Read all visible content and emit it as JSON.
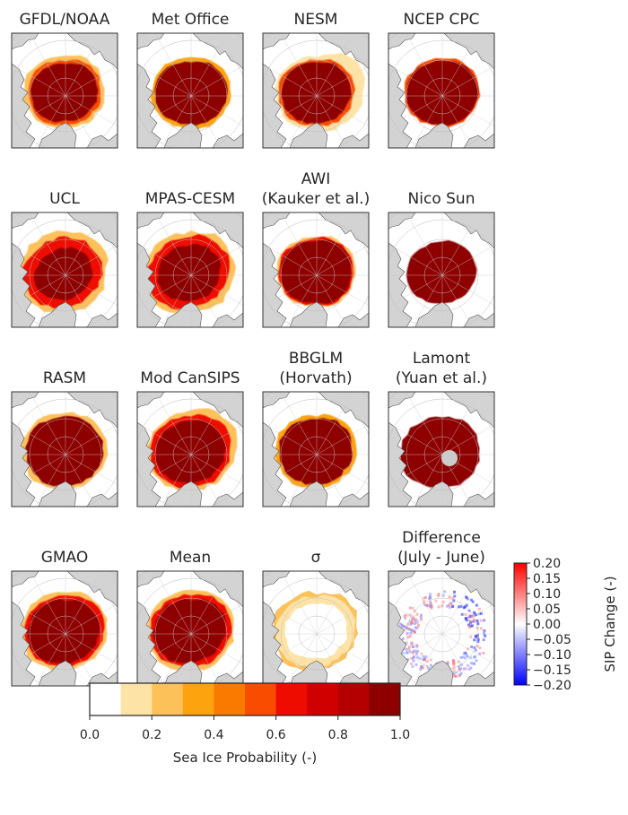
{
  "chart_data": {
    "type": "heatmap",
    "description_free": true,
    "panels": [
      {
        "id": "gfdl",
        "title": [
          "GFDL/NOAA"
        ],
        "style": "gfdl"
      },
      {
        "id": "metoffice",
        "title": [
          "Met Office"
        ],
        "style": "metoffice"
      },
      {
        "id": "nesm",
        "title": [
          "NESM"
        ],
        "style": "nesm"
      },
      {
        "id": "ncep",
        "title": [
          "NCEP CPC"
        ],
        "style": "ncep"
      },
      {
        "id": "ucl",
        "title": [
          "UCL"
        ],
        "style": "ucl"
      },
      {
        "id": "mpas",
        "title": [
          "MPAS-CESM"
        ],
        "style": "mpas"
      },
      {
        "id": "awi",
        "title": [
          "AWI",
          "(Kauker et al.)"
        ],
        "style": "awi"
      },
      {
        "id": "nicosun",
        "title": [
          "Nico Sun"
        ],
        "style": "nicosun"
      },
      {
        "id": "rasm",
        "title": [
          "RASM"
        ],
        "style": "rasm"
      },
      {
        "id": "modcansips",
        "title": [
          "Mod CanSIPS"
        ],
        "style": "modcansips"
      },
      {
        "id": "bbglm",
        "title": [
          "BBGLM",
          "(Horvath)"
        ],
        "style": "bbglm"
      },
      {
        "id": "lamont",
        "title": [
          "Lamont",
          "(Yuan et al.)"
        ],
        "style": "lamont"
      },
      {
        "id": "gmao",
        "title": [
          "GMAO"
        ],
        "style": "gmao"
      },
      {
        "id": "mean",
        "title": [
          "Mean"
        ],
        "style": "mean"
      },
      {
        "id": "sigma",
        "title": [
          "σ"
        ],
        "style": "sigma"
      },
      {
        "id": "difference",
        "title": [
          "Difference",
          "(July - June)"
        ],
        "style": "difference"
      }
    ],
    "sip_colorbar": {
      "label": "Sea Ice Probability (-)",
      "range": [
        0.0,
        1.0
      ],
      "ticks": [
        "0.0",
        "0.2",
        "0.4",
        "0.6",
        "0.8",
        "1.0"
      ],
      "bins": [
        "#ffffff",
        "#fee3a6",
        "#fdc15a",
        "#fda30e",
        "#fa7a00",
        "#f94c00",
        "#ee0c00",
        "#d10000",
        "#b40000",
        "#8e0000"
      ]
    },
    "diff_colorbar": {
      "label": "SIP Change (-)",
      "range": [
        -0.2,
        0.2
      ],
      "ticks": [
        "0.20",
        "0.15",
        "0.10",
        "0.05",
        "0.00",
        "−0.05",
        "−0.10",
        "−0.15",
        "−0.20"
      ]
    },
    "colors": {
      "land": "#d3d3d3",
      "ocean": "#ffffff",
      "ice_max": "#8b0000"
    }
  }
}
